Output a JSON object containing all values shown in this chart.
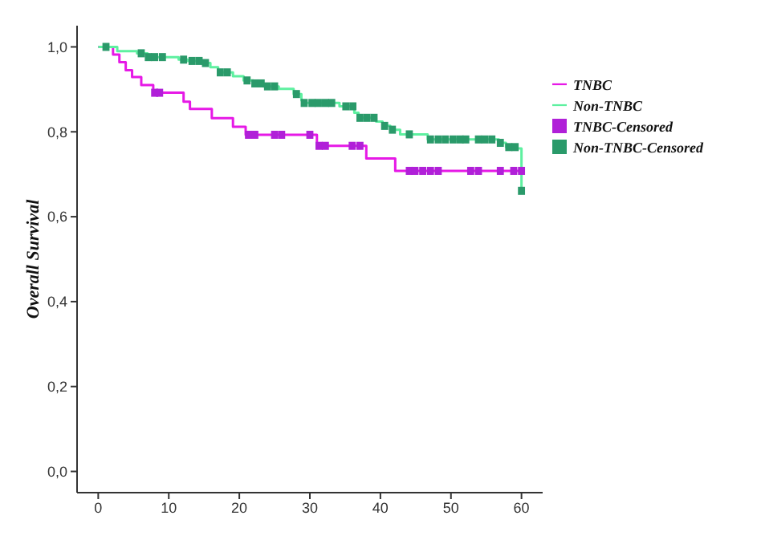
{
  "chart_data": {
    "type": "step",
    "ylabel": "Overall Survival",
    "xlim": [
      -3,
      63
    ],
    "xticks": [
      0,
      10,
      20,
      30,
      40,
      50,
      60
    ],
    "ylim": [
      -0.05,
      1.05
    ],
    "yticks": [
      {
        "value": 0,
        "label": "0,0"
      },
      {
        "value": 0.2,
        "label": "0,2"
      },
      {
        "value": 0.4,
        "label": "0,4"
      },
      {
        "value": 0.6,
        "label": "0,6"
      },
      {
        "value": 0.8,
        "label": "0,8"
      },
      {
        "value": 1,
        "label": "1,0"
      }
    ],
    "grid": false,
    "legend": "right",
    "series": [
      {
        "name": "TNBC",
        "color": "#e619e6",
        "x": [
          0,
          2.1,
          3.0,
          3.9,
          4.8,
          6.1,
          7.8,
          12.1,
          13.0,
          16.1,
          19.1,
          20.9,
          31.0,
          38.0,
          42.1,
          60
        ],
        "values": [
          1,
          0.982,
          0.964,
          0.945,
          0.929,
          0.91,
          0.892,
          0.871,
          0.854,
          0.832,
          0.812,
          0.793,
          0.767,
          0.737,
          0.708,
          0.708
        ]
      },
      {
        "name": "Non-TNBC",
        "color": "#5ef0a0",
        "x": [
          0,
          2.7,
          5.5,
          7.0,
          11.4,
          12.7,
          14.5,
          15.9,
          17.0,
          19.1,
          20.6,
          22.0,
          23.4,
          25.6,
          27.7,
          28.8,
          29.0,
          34.2,
          36.3,
          36.9,
          39.4,
          40.3,
          41.4,
          42.8,
          46.7,
          56.8,
          57.8,
          59.3,
          60,
          60
        ],
        "values": [
          1,
          0.99,
          0.985,
          0.976,
          0.97,
          0.967,
          0.962,
          0.952,
          0.94,
          0.931,
          0.921,
          0.914,
          0.907,
          0.901,
          0.889,
          0.874,
          0.868,
          0.86,
          0.845,
          0.833,
          0.824,
          0.814,
          0.805,
          0.794,
          0.782,
          0.774,
          0.764,
          0.761,
          0.761,
          0.661
        ]
      },
      {
        "name": "TNBC-Censored",
        "type": "scatter",
        "marker": "square",
        "color": "#b020d8",
        "x": [
          8.0,
          8.7,
          21.3,
          22.2,
          25.0,
          26.0,
          30.0,
          31.3,
          32.2,
          36.0,
          37.1,
          44.1,
          44.9,
          46.0,
          47.1,
          48.2,
          52.8,
          53.9,
          57.0,
          58.9,
          60.0
        ],
        "values": [
          0.892,
          0.892,
          0.793,
          0.793,
          0.793,
          0.793,
          0.793,
          0.767,
          0.767,
          0.767,
          0.767,
          0.708,
          0.708,
          0.708,
          0.708,
          0.708,
          0.708,
          0.708,
          0.708,
          0.708,
          0.708
        ]
      },
      {
        "name": "Non-TNBC-Censored",
        "type": "scatter",
        "marker": "square",
        "color": "#2a9a6a",
        "x": [
          1.1,
          6.1,
          7.1,
          8.0,
          9.1,
          12.1,
          13.3,
          14.3,
          15.2,
          17.3,
          18.3,
          21.1,
          22.2,
          23.1,
          24.0,
          25.0,
          28.1,
          29.2,
          30.3,
          31.2,
          32.2,
          33.1,
          35.1,
          36.1,
          37.1,
          38.1,
          39.1,
          40.6,
          41.7,
          44.1,
          47.1,
          48.2,
          49.2,
          50.3,
          51.3,
          52.1,
          53.9,
          54.8,
          55.8,
          57.0,
          58.2,
          59.1,
          60.0
        ],
        "values": [
          1,
          0.985,
          0.976,
          0.976,
          0.976,
          0.97,
          0.967,
          0.967,
          0.962,
          0.94,
          0.94,
          0.921,
          0.914,
          0.914,
          0.907,
          0.907,
          0.889,
          0.868,
          0.868,
          0.868,
          0.868,
          0.868,
          0.86,
          0.86,
          0.833,
          0.833,
          0.833,
          0.814,
          0.805,
          0.794,
          0.782,
          0.782,
          0.782,
          0.782,
          0.782,
          0.782,
          0.782,
          0.782,
          0.782,
          0.774,
          0.764,
          0.764,
          0.661
        ]
      }
    ]
  }
}
